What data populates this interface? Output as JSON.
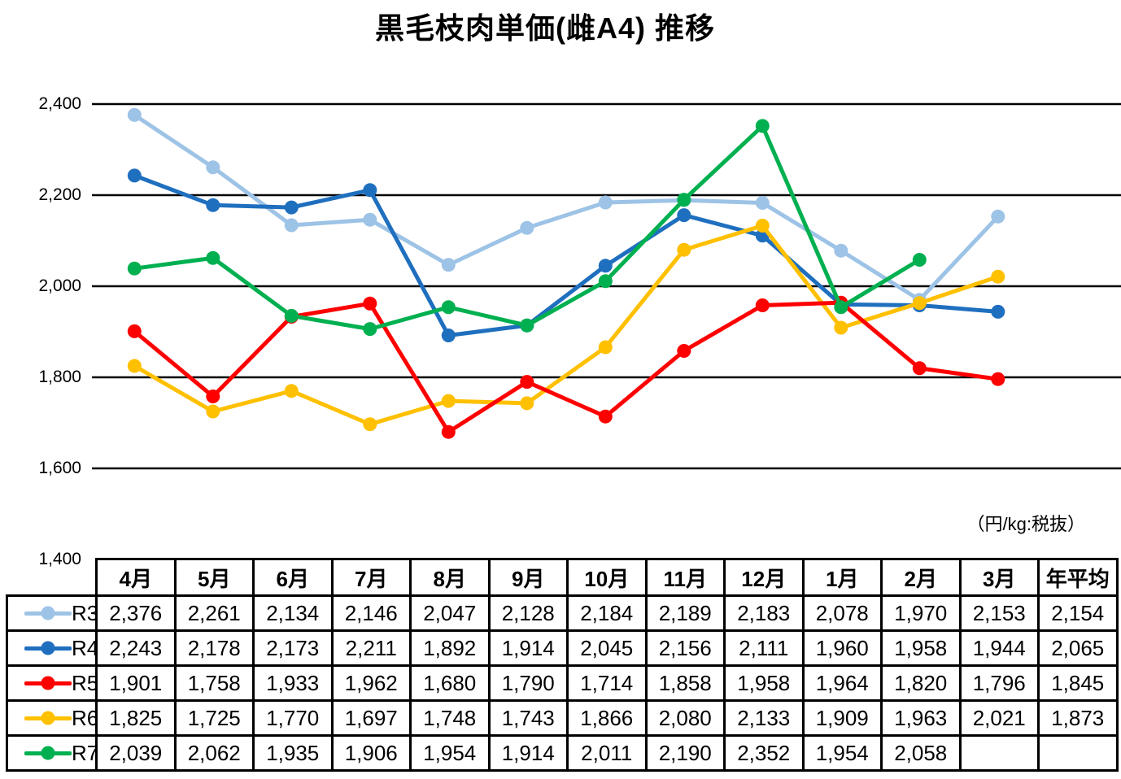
{
  "title": "黒毛枝肉単価(雌A4) 推移",
  "unit_label": "（円/kg:税抜）",
  "chart_data": {
    "type": "line",
    "title": "黒毛枝肉単価(雌A4) 推移",
    "categories": [
      "4月",
      "5月",
      "6月",
      "7月",
      "8月",
      "9月",
      "10月",
      "11月",
      "12月",
      "1月",
      "2月",
      "3月"
    ],
    "average_header": "年平均",
    "ylim": [
      1400,
      2400
    ],
    "ytick_step": 200,
    "ytick_labels": [
      "2,400",
      "2,200",
      "2,000",
      "1,800",
      "1,600",
      "1,400"
    ],
    "grid": true,
    "legend_position": "table-left",
    "gridline_color": "#000000",
    "draw_order": [
      0,
      1,
      3,
      2,
      4
    ],
    "series": [
      {
        "name": "R3",
        "color": "#9DC3E6",
        "values": [
          2376,
          2261,
          2134,
          2146,
          2047,
          2128,
          2184,
          2189,
          2183,
          2078,
          1970,
          2153
        ],
        "average": 2154
      },
      {
        "name": "R4",
        "color": "#1F6FBF",
        "values": [
          2243,
          2178,
          2173,
          2211,
          1892,
          1914,
          2045,
          2156,
          2111,
          1960,
          1958,
          1944
        ],
        "average": 2065
      },
      {
        "name": "R5",
        "color": "#FF0000",
        "values": [
          1901,
          1758,
          1933,
          1962,
          1680,
          1790,
          1714,
          1858,
          1958,
          1964,
          1820,
          1796
        ],
        "average": 1845
      },
      {
        "name": "R6",
        "color": "#FFC000",
        "values": [
          1825,
          1725,
          1770,
          1697,
          1748,
          1743,
          1866,
          2080,
          2133,
          1909,
          1963,
          2021
        ],
        "average": 1873
      },
      {
        "name": "R7",
        "color": "#00B050",
        "values": [
          2039,
          2062,
          1935,
          1906,
          1954,
          1914,
          2011,
          2190,
          2352,
          1954,
          2058,
          null
        ],
        "average": null
      }
    ]
  }
}
